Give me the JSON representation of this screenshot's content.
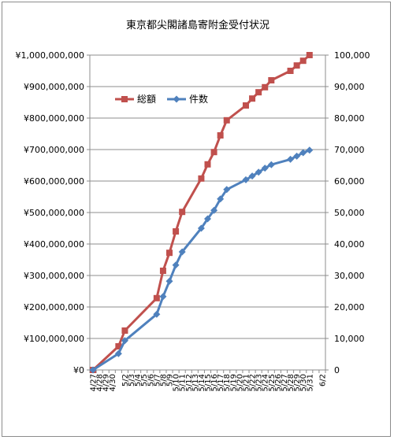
{
  "chart_data": {
    "type": "line",
    "title": "東京都尖閣諸島寄附金受付状況",
    "xlabel": "",
    "ylabel": "",
    "grid": true,
    "legend_position": "top-left inside plot",
    "categories": [
      "4/27",
      "4/28",
      "4/29",
      "4/30",
      "5/1",
      "5/2",
      "5/3",
      "5/4",
      "5/5",
      "5/6",
      "5/7",
      "5/8",
      "5/9",
      "5/10",
      "5/11",
      "5/12",
      "5/13",
      "5/14",
      "5/15",
      "5/16",
      "5/17",
      "5/18",
      "5/19",
      "5/20",
      "5/21",
      "5/22",
      "5/23",
      "5/24",
      "5/25",
      "5/26",
      "5/27",
      "5/28",
      "5/29",
      "5/30",
      "5/31",
      "6/1",
      "6/2"
    ],
    "tick_labels": [
      "4/27",
      "4/28",
      "4/29",
      "4/30",
      "5/2",
      "5/3",
      "5/4",
      "5/5",
      "5/6",
      "5/7",
      "5/8",
      "5/9",
      "5/10",
      "5/11",
      "5/12",
      "5/13",
      "5/14",
      "5/15",
      "5/16",
      "5/17",
      "5/18",
      "5/19",
      "5/20",
      "5/21",
      "5/22",
      "5/23",
      "5/24",
      "5/25",
      "5/26",
      "5/27",
      "5/28",
      "5/29",
      "5/30",
      "5/31",
      "6/2"
    ],
    "y_left": {
      "min": 0,
      "max": 1000000000,
      "step": 100000000,
      "tick_labels": [
        "¥0",
        "¥100,000,000",
        "¥200,000,000",
        "¥300,000,000",
        "¥400,000,000",
        "¥500,000,000",
        "¥600,000,000",
        "¥700,000,000",
        "¥800,000,000",
        "¥900,000,000",
        "¥1,000,000,000"
      ]
    },
    "y_right": {
      "min": 0,
      "max": 100000,
      "step": 10000,
      "tick_labels": [
        "0",
        "10,000",
        "20,000",
        "30,000",
        "40,000",
        "50,000",
        "60,000",
        "70,000",
        "80,000",
        "90,000",
        "100,000"
      ]
    },
    "series": [
      {
        "name": "総額",
        "axis": "left",
        "color": "#c0504d",
        "marker": "square",
        "points": [
          [
            "4/27",
            0
          ],
          [
            "5/1",
            75000000
          ],
          [
            "5/2",
            125000000
          ],
          [
            "5/7",
            228000000
          ],
          [
            "5/8",
            315000000
          ],
          [
            "5/9",
            372000000
          ],
          [
            "5/10",
            440000000
          ],
          [
            "5/11",
            502000000
          ],
          [
            "5/14",
            608000000
          ],
          [
            "5/15",
            653000000
          ],
          [
            "5/16",
            692000000
          ],
          [
            "5/17",
            745000000
          ],
          [
            "5/18",
            793000000
          ],
          [
            "5/21",
            840000000
          ],
          [
            "5/22",
            862000000
          ],
          [
            "5/23",
            882000000
          ],
          [
            "5/24",
            898000000
          ],
          [
            "5/25",
            920000000
          ],
          [
            "5/28",
            950000000
          ],
          [
            "5/29",
            967000000
          ],
          [
            "5/30",
            982000000
          ],
          [
            "5/31",
            1000000000
          ]
        ]
      },
      {
        "name": "件数",
        "axis": "right",
        "color": "#4f81bd",
        "marker": "diamond",
        "points": [
          [
            "4/27",
            0
          ],
          [
            "5/1",
            5200
          ],
          [
            "5/2",
            9300
          ],
          [
            "5/7",
            17700
          ],
          [
            "5/8",
            23300
          ],
          [
            "5/9",
            28200
          ],
          [
            "5/10",
            33300
          ],
          [
            "5/11",
            37500
          ],
          [
            "5/14",
            45000
          ],
          [
            "5/15",
            48000
          ],
          [
            "5/16",
            50700
          ],
          [
            "5/17",
            54300
          ],
          [
            "5/18",
            57300
          ],
          [
            "5/21",
            60400
          ],
          [
            "5/22",
            61600
          ],
          [
            "5/23",
            62800
          ],
          [
            "5/24",
            64100
          ],
          [
            "5/25",
            65200
          ],
          [
            "5/28",
            66900
          ],
          [
            "5/29",
            67900
          ],
          [
            "5/30",
            69000
          ],
          [
            "5/31",
            69800
          ]
        ]
      }
    ]
  }
}
